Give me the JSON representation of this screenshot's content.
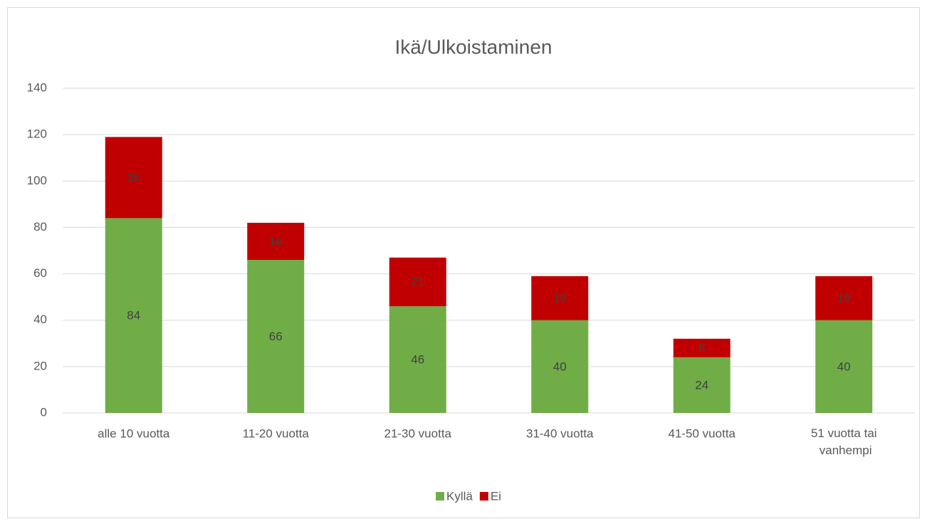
{
  "chart_data": {
    "type": "stacked_bar",
    "title": "Ikä/Ulkoistaminen",
    "categories": [
      "alle 10 vuotta",
      "11-20 vuotta",
      "21-30 vuotta",
      "31-40 vuotta",
      "41-50 vuotta",
      "51 vuotta tai vanhempi"
    ],
    "series": [
      {
        "name": "Kyllä",
        "color": "#70ad47",
        "values": [
          84,
          66,
          46,
          40,
          24,
          40
        ]
      },
      {
        "name": "Ei",
        "color": "#c00000",
        "values": [
          35,
          16,
          21,
          19,
          8,
          19
        ]
      }
    ],
    "ylim": [
      0,
      140
    ],
    "yticks": [
      0,
      20,
      40,
      60,
      80,
      100,
      120,
      140
    ],
    "grid": true,
    "legend": "bottom"
  }
}
